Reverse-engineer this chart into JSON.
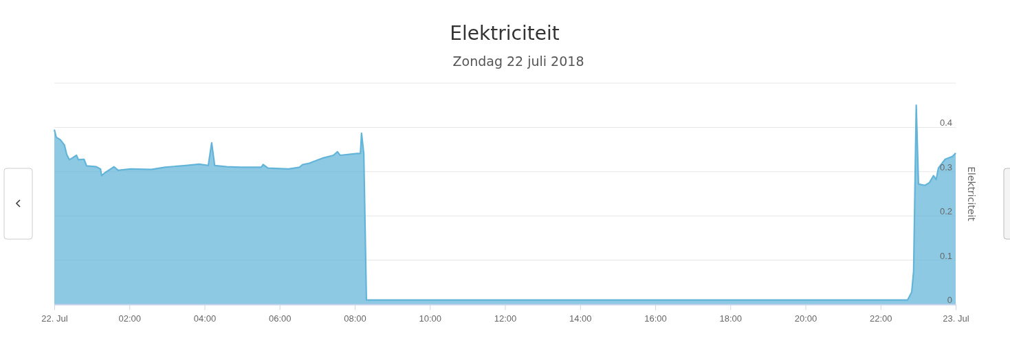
{
  "chart_data": {
    "type": "area",
    "title": "Elektriciteit",
    "subtitle": "Zondag 22 juli 2018",
    "ylabel": "Elektriciteit",
    "xlim": [
      0,
      24
    ],
    "xticks": [
      {
        "value": 0,
        "label": "22. Jul"
      },
      {
        "value": 2,
        "label": "02:00"
      },
      {
        "value": 4,
        "label": "04:00"
      },
      {
        "value": 6,
        "label": "06:00"
      },
      {
        "value": 8,
        "label": "08:00"
      },
      {
        "value": 10,
        "label": "10:00"
      },
      {
        "value": 12,
        "label": "12:00"
      },
      {
        "value": 14,
        "label": "14:00"
      },
      {
        "value": 16,
        "label": "16:00"
      },
      {
        "value": 18,
        "label": "18:00"
      },
      {
        "value": 20,
        "label": "20:00"
      },
      {
        "value": 22,
        "label": "22:00"
      },
      {
        "value": 24,
        "label": "23. Jul"
      }
    ],
    "ylim": [
      0,
      0.5
    ],
    "yticks": [
      0,
      0.1,
      0.2,
      0.3,
      0.4,
      {
        "value": 0.5,
        "label": null
      }
    ],
    "grid": "y",
    "marker": "none",
    "series": [
      {
        "color": "#62b4d9",
        "x": [
          0,
          0.05,
          0.16,
          0.27,
          0.33,
          0.4,
          0.48,
          0.59,
          0.64,
          0.79,
          0.86,
          1.12,
          1.23,
          1.26,
          1.34,
          1.48,
          1.59,
          1.7,
          2.03,
          2.58,
          2.95,
          3.5,
          3.86,
          4.1,
          4.19,
          4.27,
          4.59,
          4.96,
          5.51,
          5.56,
          5.69,
          6.24,
          6.53,
          6.61,
          6.79,
          7.16,
          7.43,
          7.54,
          7.61,
          8.07,
          8.15,
          8.18,
          8.24,
          8.31,
          9,
          12,
          16,
          20,
          22.72,
          22.83,
          22.88,
          22.95,
          23.01,
          23.18,
          23.3,
          23.41,
          23.48,
          23.54,
          23.72,
          23.91,
          24
        ],
        "values": [
          0.395,
          0.378,
          0.372,
          0.36,
          0.339,
          0.327,
          0.331,
          0.337,
          0.327,
          0.328,
          0.313,
          0.311,
          0.306,
          0.291,
          0.297,
          0.305,
          0.311,
          0.303,
          0.306,
          0.305,
          0.31,
          0.314,
          0.317,
          0.314,
          0.365,
          0.314,
          0.311,
          0.31,
          0.31,
          0.316,
          0.308,
          0.306,
          0.31,
          0.316,
          0.319,
          0.331,
          0.337,
          0.345,
          0.337,
          0.341,
          0.341,
          0.387,
          0.341,
          0.01,
          0.01,
          0.01,
          0.01,
          0.01,
          0.01,
          0.028,
          0.075,
          0.45,
          0.272,
          0.269,
          0.275,
          0.291,
          0.282,
          0.308,
          0.328,
          0.334,
          0.342
        ]
      }
    ]
  }
}
